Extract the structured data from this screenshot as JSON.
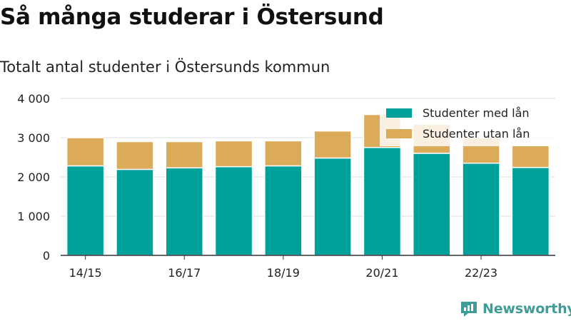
{
  "header": {
    "title": "Så många studerar i Östersund",
    "subtitle": "Totalt antal studenter i Östersunds kommun"
  },
  "brand": {
    "name": "Newsworthy"
  },
  "colors": {
    "with_loan": "#00a19a",
    "without_loan": "#dbab59",
    "grid": "#dddddd",
    "axis": "#333333",
    "brand": "#3f9c97"
  },
  "chart_data": {
    "type": "bar",
    "stacked": true,
    "categories": [
      "14/15",
      "15/16",
      "16/17",
      "17/18",
      "18/19",
      "19/20",
      "20/21",
      "21/22",
      "22/23",
      "23/24"
    ],
    "tick_labels": [
      "14/15",
      "",
      "16/17",
      "",
      "18/19",
      "",
      "20/21",
      "",
      "22/23",
      ""
    ],
    "series": [
      {
        "name": "Studenter med lån",
        "values": [
          2280,
          2190,
          2230,
          2260,
          2280,
          2480,
          2750,
          2600,
          2350,
          2240
        ]
      },
      {
        "name": "Studenter utan lån",
        "values": [
          720,
          710,
          670,
          660,
          640,
          690,
          840,
          740,
          650,
          560
        ]
      }
    ],
    "ylim": [
      0,
      4000
    ],
    "yticks": [
      0,
      1000,
      2000,
      3000,
      4000
    ],
    "ytick_labels": [
      "0",
      "1 000",
      "2 000",
      "3 000",
      "4 000"
    ],
    "grid": true,
    "legend_position": "top-right",
    "xlabel": "",
    "ylabel": ""
  }
}
